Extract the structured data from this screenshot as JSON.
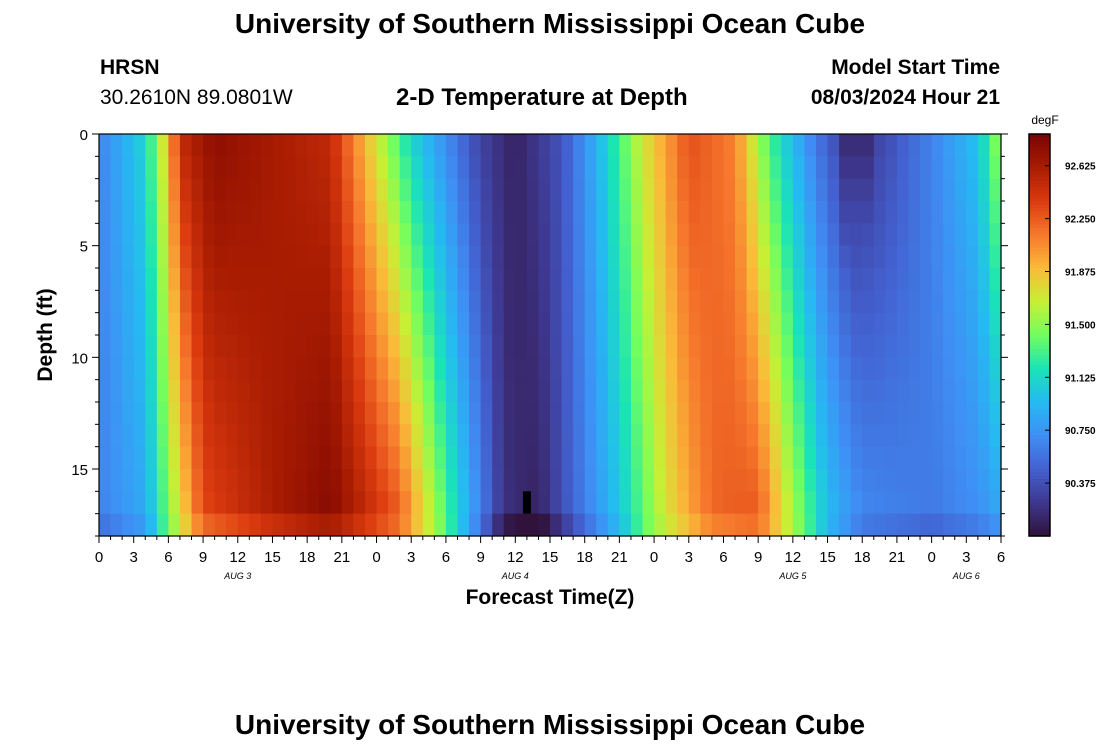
{
  "header": {
    "title": "University of Southern Mississippi Ocean Cube",
    "station": "HRSN",
    "coords": "30.2610N  89.0801W",
    "subtitle": "2-D Temperature at Depth",
    "model_start_label": "Model Start Time",
    "model_start_value": "08/03/2024 Hour 21"
  },
  "footer": {
    "title": "University of Southern Mississippi Ocean Cube"
  },
  "colors": {
    "palette": [
      "#30123b",
      "#3e378f",
      "#4361d0",
      "#3f8ff5",
      "#25baf2",
      "#1ae4b6",
      "#72fe5e",
      "#c8ef34",
      "#faba39",
      "#f6782d",
      "#db3a0f",
      "#a81c02",
      "#7a0403"
    ]
  },
  "chart_data": {
    "type": "heatmap",
    "title": "2-D Temperature at Depth",
    "xlabel": "Forecast Time(Z)",
    "ylabel": "Depth (ft)",
    "x_hours": [
      0,
      78
    ],
    "y_depth_ft": [
      0,
      18
    ],
    "x_tick_labels": [
      "0",
      "3",
      "6",
      "9",
      "12",
      "15",
      "18",
      "21",
      "0",
      "3",
      "6",
      "9",
      "12",
      "15",
      "18",
      "21",
      "0",
      "3",
      "6",
      "9",
      "12",
      "15",
      "18",
      "21",
      "0",
      "3",
      "6"
    ],
    "date_labels": [
      {
        "label": "AUG 3",
        "hour": 12
      },
      {
        "label": "AUG 4",
        "hour": 36
      },
      {
        "label": "AUG 5",
        "hour": 60
      },
      {
        "label": "AUG 6",
        "hour": 75
      }
    ],
    "y_ticks": [
      0,
      5,
      10,
      15
    ],
    "colorbar": {
      "unit": "degF",
      "min": 90.0,
      "max": 92.85,
      "tick_values": [
        92.625,
        92.25,
        91.875,
        91.5,
        91.125,
        90.75,
        90.375
      ],
      "tick_labels": [
        "92.625",
        "92.250",
        "91.875",
        "91.500",
        "91.125",
        "90.750",
        "90.375"
      ]
    },
    "grid": {
      "cols": 78,
      "rows": 18
    },
    "temperature_profile_surface": [
      {
        "hour": 0,
        "temp": 90.65
      },
      {
        "hour": 4,
        "temp": 91.1
      },
      {
        "hour": 6,
        "temp": 91.9
      },
      {
        "hour": 7,
        "temp": 92.5
      },
      {
        "hour": 10,
        "temp": 92.75
      },
      {
        "hour": 20,
        "temp": 92.5
      },
      {
        "hour": 23,
        "temp": 91.9
      },
      {
        "hour": 27,
        "temp": 91.1
      },
      {
        "hour": 30,
        "temp": 90.7
      },
      {
        "hour": 33,
        "temp": 90.3
      },
      {
        "hour": 36,
        "temp": 90.1
      },
      {
        "hour": 40,
        "temp": 90.4
      },
      {
        "hour": 43,
        "temp": 90.9
      },
      {
        "hour": 47,
        "temp": 91.7
      },
      {
        "hour": 51,
        "temp": 92.3
      },
      {
        "hour": 55,
        "temp": 92.1
      },
      {
        "hour": 58,
        "temp": 91.3
      },
      {
        "hour": 62,
        "temp": 90.6
      },
      {
        "hour": 65,
        "temp": 90.2
      },
      {
        "hour": 68,
        "temp": 90.35
      },
      {
        "hour": 72,
        "temp": 90.65
      },
      {
        "hour": 76,
        "temp": 91.0
      },
      {
        "hour": 78,
        "temp": 91.6
      }
    ],
    "temperature_profile_bottom": [
      {
        "hour": 0,
        "temp": 90.65
      },
      {
        "hour": 4,
        "temp": 90.85
      },
      {
        "hour": 7,
        "temp": 91.7
      },
      {
        "hour": 9,
        "temp": 92.3
      },
      {
        "hour": 15,
        "temp": 92.6
      },
      {
        "hour": 20,
        "temp": 92.8
      },
      {
        "hour": 26,
        "temp": 92.3
      },
      {
        "hour": 29,
        "temp": 91.6
      },
      {
        "hour": 32,
        "temp": 90.9
      },
      {
        "hour": 35,
        "temp": 90.2
      },
      {
        "hour": 38,
        "temp": 90.1
      },
      {
        "hour": 41,
        "temp": 90.5
      },
      {
        "hour": 45,
        "temp": 91.0
      },
      {
        "hour": 49,
        "temp": 91.7
      },
      {
        "hour": 53,
        "temp": 92.2
      },
      {
        "hour": 57,
        "temp": 92.3
      },
      {
        "hour": 60,
        "temp": 91.6
      },
      {
        "hour": 63,
        "temp": 91.0
      },
      {
        "hour": 66,
        "temp": 90.7
      },
      {
        "hour": 72,
        "temp": 90.6
      },
      {
        "hour": 76,
        "temp": 90.7
      },
      {
        "hour": 78,
        "temp": 90.8
      }
    ],
    "cold_anomaly": {
      "hour_start": 64,
      "hour_end": 67,
      "depth_end_ft": 8.5,
      "temp": 90.15
    },
    "missing_cell": {
      "hour": 37,
      "depth_ft": 16,
      "temp": null
    }
  }
}
